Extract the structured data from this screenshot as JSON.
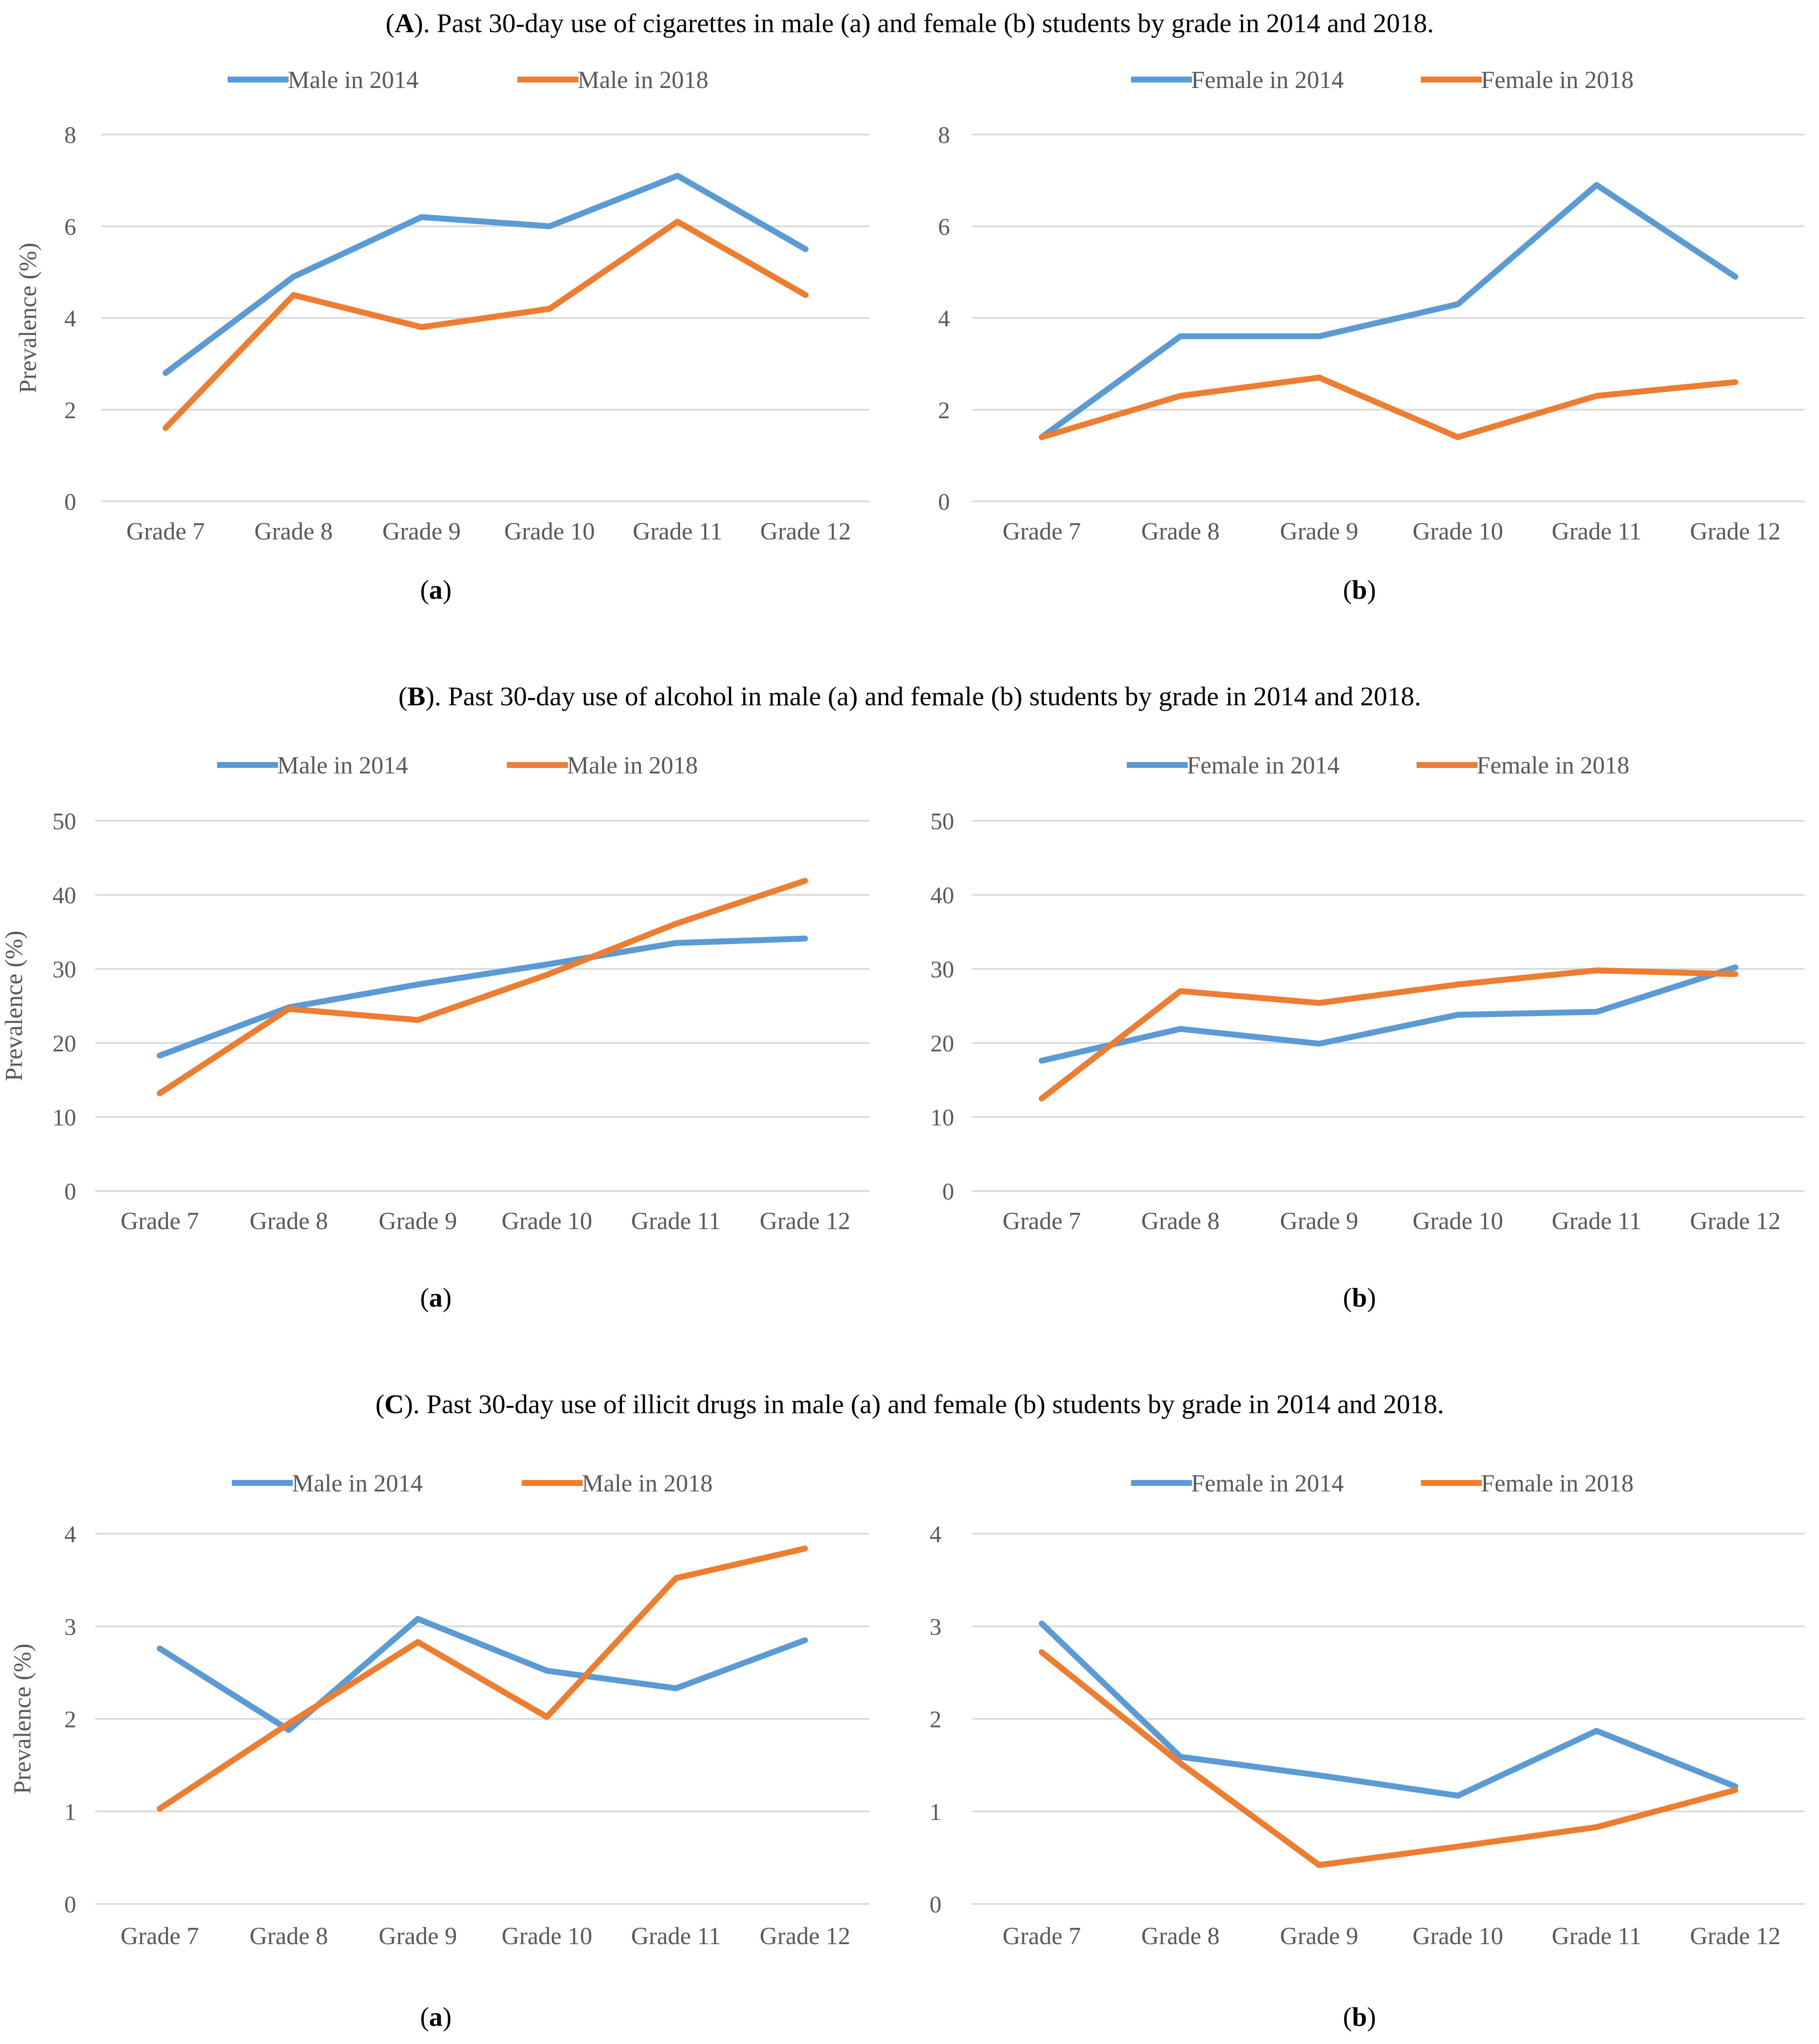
{
  "colors": {
    "series_2014": "#5B9BD5",
    "series_2018": "#ED7D31",
    "grid": "#D9D9D9",
    "text": "#000000",
    "tick_text": "#595959"
  },
  "chart_data": [
    {
      "type": "line",
      "panel": "A",
      "subpanel": "a",
      "categories": [
        "Grade 7",
        "Grade 8",
        "Grade 9",
        "Grade 10",
        "Grade 11",
        "Grade 12"
      ],
      "series": [
        {
          "name": "Male in 2014",
          "values": [
            2.8,
            4.9,
            6.2,
            6.0,
            7.1,
            5.5
          ]
        },
        {
          "name": "Male in 2018",
          "values": [
            1.6,
            4.5,
            3.8,
            4.2,
            6.1,
            4.5
          ]
        }
      ],
      "ylabel": "Prevalence (%)",
      "ylim": [
        0,
        8
      ],
      "yticks": [
        0,
        2,
        4,
        6,
        8
      ],
      "grid": true,
      "legend": "top"
    },
    {
      "type": "line",
      "panel": "A",
      "subpanel": "b",
      "categories": [
        "Grade 7",
        "Grade 8",
        "Grade 9",
        "Grade 10",
        "Grade 11",
        "Grade 12"
      ],
      "series": [
        {
          "name": "Female in 2014",
          "values": [
            1.4,
            3.6,
            3.6,
            4.3,
            6.9,
            4.9
          ]
        },
        {
          "name": "Female in 2018",
          "values": [
            1.4,
            2.3,
            2.7,
            1.4,
            2.3,
            2.6
          ]
        }
      ],
      "ylabel": "",
      "ylim": [
        0,
        8
      ],
      "yticks": [
        0,
        2,
        4,
        6,
        8
      ],
      "grid": true,
      "legend": "top"
    },
    {
      "type": "line",
      "panel": "B",
      "subpanel": "a",
      "categories": [
        "Grade 7",
        "Grade 8",
        "Grade 9",
        "Grade 10",
        "Grade 11",
        "Grade 12"
      ],
      "series": [
        {
          "name": "Male in 2014",
          "values": [
            18.3,
            24.8,
            27.9,
            30.6,
            33.5,
            34.1
          ]
        },
        {
          "name": "Male in 2018",
          "values": [
            13.2,
            24.6,
            23.1,
            29.2,
            36.1,
            41.9
          ]
        }
      ],
      "ylabel": "Prevalence (%)",
      "ylim": [
        0,
        50
      ],
      "yticks": [
        0,
        10,
        20,
        30,
        40,
        50
      ],
      "grid": true,
      "legend": "top"
    },
    {
      "type": "line",
      "panel": "B",
      "subpanel": "b",
      "categories": [
        "Grade 7",
        "Grade 8",
        "Grade 9",
        "Grade 10",
        "Grade 11",
        "Grade 12"
      ],
      "series": [
        {
          "name": "Female in 2014",
          "values": [
            17.6,
            21.9,
            19.9,
            23.8,
            24.2,
            30.2
          ]
        },
        {
          "name": "Female in 2018",
          "values": [
            12.5,
            27.0,
            25.4,
            27.9,
            29.8,
            29.3
          ]
        }
      ],
      "ylabel": "",
      "ylim": [
        0,
        50
      ],
      "yticks": [
        0,
        10,
        20,
        30,
        40,
        50
      ],
      "grid": true,
      "legend": "top"
    },
    {
      "type": "line",
      "panel": "C",
      "subpanel": "a",
      "categories": [
        "Grade 7",
        "Grade 8",
        "Grade 9",
        "Grade 10",
        "Grade 11",
        "Grade 12"
      ],
      "series": [
        {
          "name": "Male in 2014",
          "values": [
            2.76,
            1.88,
            3.08,
            2.52,
            2.33,
            2.85
          ]
        },
        {
          "name": "Male in 2018",
          "values": [
            1.03,
            1.95,
            2.83,
            2.02,
            3.52,
            3.84
          ]
        }
      ],
      "ylabel": "Prevalence (%)",
      "ylim": [
        0,
        4
      ],
      "yticks": [
        0,
        1,
        2,
        3,
        4
      ],
      "grid": true,
      "legend": "top"
    },
    {
      "type": "line",
      "panel": "C",
      "subpanel": "b",
      "categories": [
        "Grade 7",
        "Grade 8",
        "Grade 9",
        "Grade 10",
        "Grade 11",
        "Grade 12"
      ],
      "series": [
        {
          "name": "Female in 2014",
          "values": [
            3.03,
            1.59,
            1.39,
            1.17,
            1.87,
            1.27
          ]
        },
        {
          "name": "Female in 2018",
          "values": [
            2.72,
            1.52,
            0.42,
            0.62,
            0.83,
            1.23
          ]
        }
      ],
      "ylabel": "",
      "ylim": [
        0,
        4
      ],
      "yticks": [
        0,
        1,
        2,
        3,
        4
      ],
      "grid": true,
      "legend": "top"
    }
  ],
  "titles": [
    {
      "letter": "A",
      "text": "). Past 30-day use of cigarettes in male (a) and female (b) students by grade in 2014 and 2018."
    },
    {
      "letter": "B",
      "text": "). Past 30-day use of alcohol in male (a) and female (b) students by grade in 2014 and 2018."
    },
    {
      "letter": "C",
      "text": "). Past 30-day use of illicit drugs in male (a) and female (b) students by grade in 2014 and 2018."
    }
  ],
  "sub_labels": [
    "a",
    "b"
  ]
}
